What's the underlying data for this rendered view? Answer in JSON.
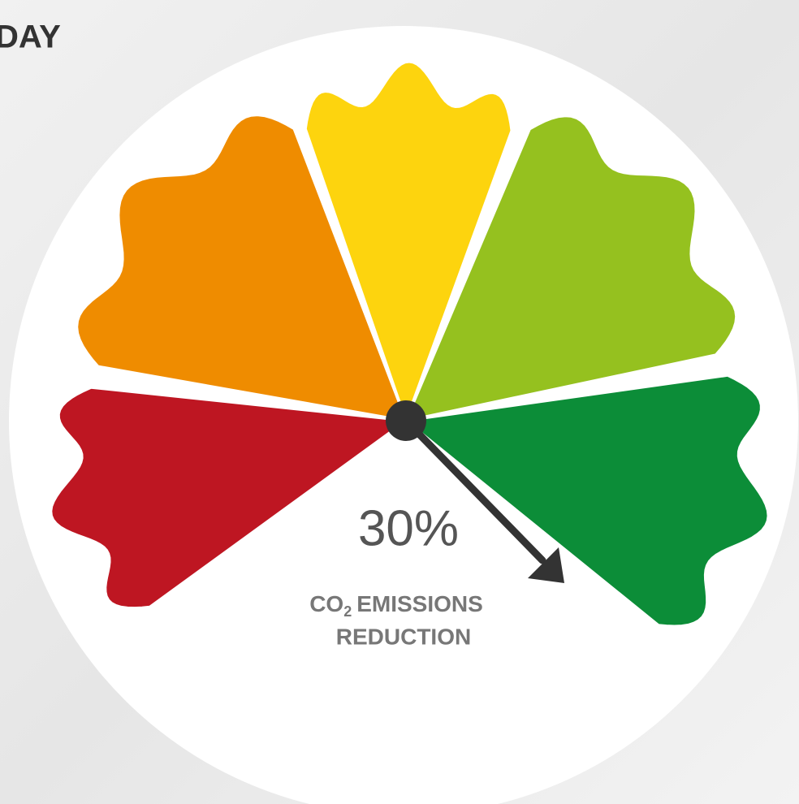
{
  "heading": {
    "title": "DAY"
  },
  "gauge": {
    "value_label": "30%",
    "caption": {
      "line1": {
        "prefix": "CO",
        "subscript": "2",
        "suffix": "EMISSIONS"
      },
      "line2": "REDUCTION"
    }
  }
}
